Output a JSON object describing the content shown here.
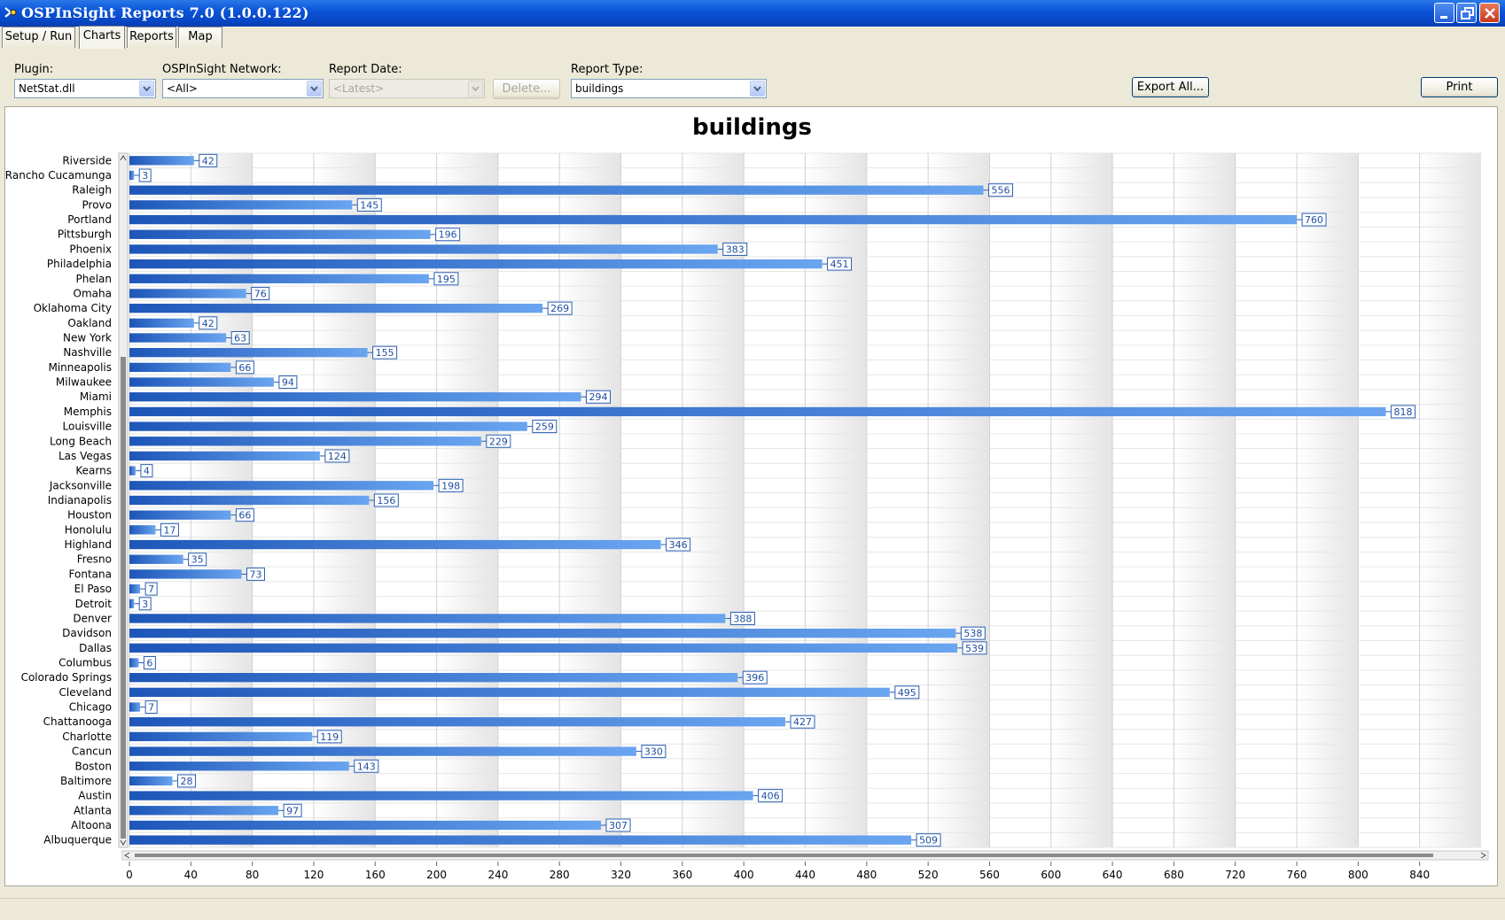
{
  "window": {
    "title": "OSPInSight Reports 7.0  (1.0.0.122)",
    "accent": "#0a54d8"
  },
  "tabs": [
    {
      "label": "Setup / Run",
      "active": false
    },
    {
      "label": "Charts",
      "active": true
    },
    {
      "label": "Reports",
      "active": false
    },
    {
      "label": "Map",
      "active": false
    }
  ],
  "controls": {
    "plugin_label": "Plugin:",
    "plugin_value": "NetStat.dll",
    "network_label": "OSPInSight Network:",
    "network_value": "<All>",
    "date_label": "Report Date:",
    "date_value": "<Latest>",
    "delete_label": "Delete...",
    "type_label": "Report Type:",
    "type_value": "buildings",
    "export_label": "Export All...",
    "print_label": "Print"
  },
  "chart_data": {
    "type": "bar",
    "orientation": "horizontal",
    "title": "buildings",
    "xlabel": "",
    "ylabel": "",
    "xlim": [
      0,
      880
    ],
    "x_ticks": [
      0,
      40,
      80,
      120,
      160,
      200,
      240,
      280,
      320,
      360,
      400,
      440,
      480,
      520,
      560,
      600,
      640,
      680,
      720,
      760,
      800,
      840
    ],
    "grid": true,
    "data_labels": true,
    "bar_color": "#2a6fd6",
    "categories": [
      "Riverside",
      "Rancho Cucamunga",
      "Raleigh",
      "Provo",
      "Portland",
      "Pittsburgh",
      "Phoenix",
      "Philadelphia",
      "Phelan",
      "Omaha",
      "Oklahoma City",
      "Oakland",
      "New York",
      "Nashville",
      "Minneapolis",
      "Milwaukee",
      "Miami",
      "Memphis",
      "Louisville",
      "Long Beach",
      "Las Vegas",
      "Kearns",
      "Jacksonville",
      "Indianapolis",
      "Houston",
      "Honolulu",
      "Highland",
      "Fresno",
      "Fontana",
      "El Paso",
      "Detroit",
      "Denver",
      "Davidson",
      "Dallas",
      "Columbus",
      "Colorado Springs",
      "Cleveland",
      "Chicago",
      "Chattanooga",
      "Charlotte",
      "Cancun",
      "Boston",
      "Baltimore",
      "Austin",
      "Atlanta",
      "Altoona",
      "Albuquerque"
    ],
    "values": [
      42,
      3,
      556,
      145,
      760,
      196,
      383,
      451,
      195,
      76,
      269,
      42,
      63,
      155,
      66,
      94,
      294,
      818,
      259,
      229,
      124,
      4,
      198,
      156,
      66,
      17,
      346,
      35,
      73,
      7,
      3,
      388,
      538,
      539,
      6,
      396,
      495,
      7,
      427,
      119,
      330,
      143,
      28,
      406,
      97,
      307,
      509
    ]
  }
}
